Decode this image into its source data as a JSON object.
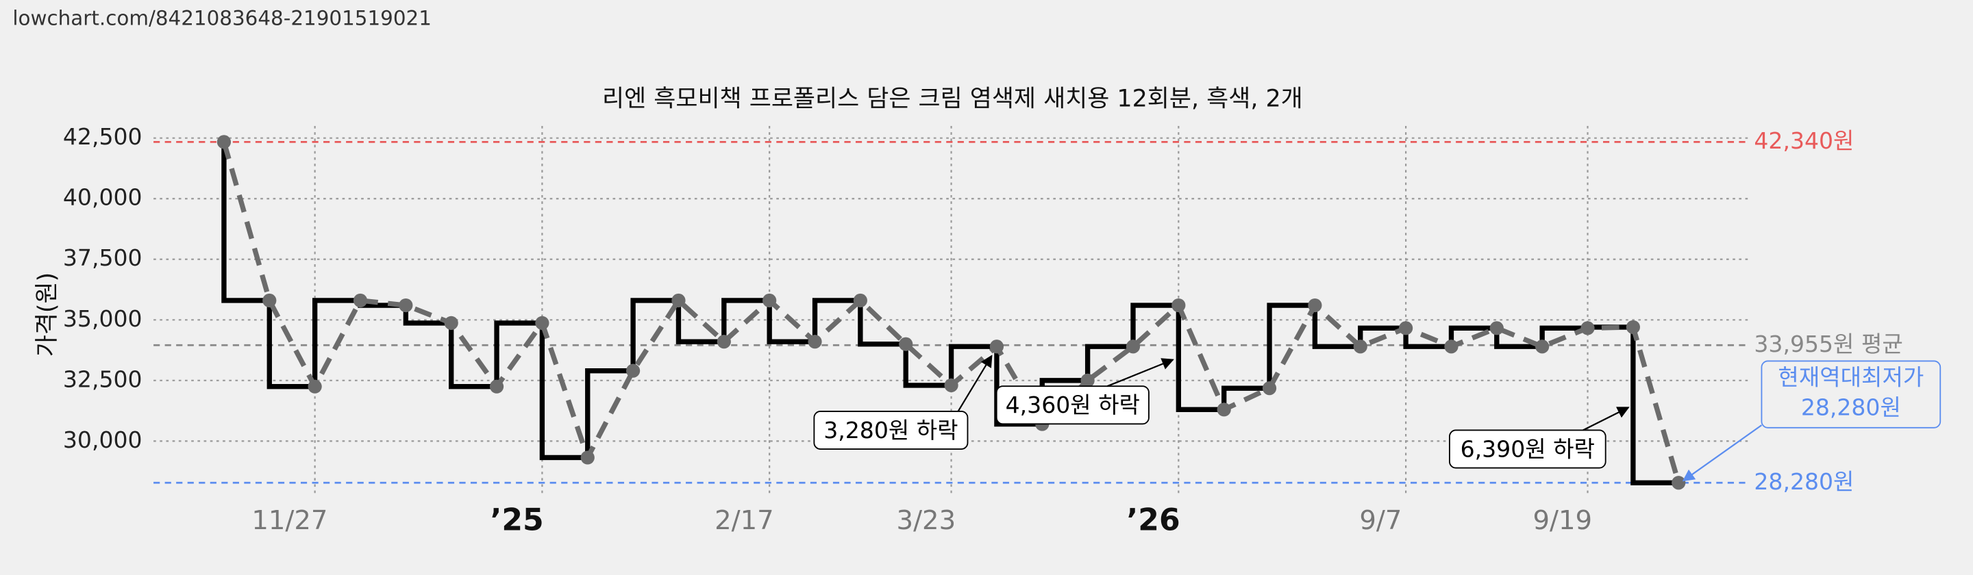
{
  "source": "lowchart.com/8421083648-21901519021",
  "chart_data": {
    "type": "line",
    "title": "리엔 흑모비책 프로폴리스 담은 크림 염색제 새치용 12회분, 흑색, 2개",
    "y_label": "가격(원)",
    "x": [
      0,
      1,
      2,
      3,
      4,
      5,
      6,
      7,
      8,
      9,
      10,
      11,
      12,
      13,
      14,
      15,
      16,
      17,
      18,
      19,
      20,
      21,
      22,
      23,
      24,
      25,
      26,
      27,
      28,
      29,
      30,
      31,
      32
    ],
    "values": [
      42340,
      35800,
      32250,
      35800,
      35600,
      34870,
      32250,
      34870,
      29320,
      32900,
      35800,
      34100,
      35800,
      34100,
      35800,
      34000,
      32300,
      33900,
      30700,
      32500,
      33900,
      35600,
      31300,
      32180,
      35600,
      33900,
      34660,
      33900,
      34660,
      33900,
      34660,
      34700,
      28280
    ],
    "line_color": "#6b6b6b",
    "step_color": "#000000",
    "xlim": [
      -1.55,
      33.55
    ],
    "xticks": [
      {
        "value": 2,
        "label": "11/27"
      },
      {
        "value": 7,
        "label": "’25",
        "major": true
      },
      {
        "value": 12,
        "label": "2/17"
      },
      {
        "value": 16,
        "label": "3/23"
      },
      {
        "value": 21,
        "label": "’26",
        "major": true
      },
      {
        "value": 26,
        "label": "9/7"
      },
      {
        "value": 30,
        "label": "9/19"
      }
    ],
    "ylim": [
      27700,
      43000
    ],
    "yticks": [
      {
        "value": 30000,
        "label": "30,000"
      },
      {
        "value": 32500,
        "label": "32,500"
      },
      {
        "value": 35000,
        "label": "35,000"
      },
      {
        "value": 37500,
        "label": "37,500"
      },
      {
        "value": 40000,
        "label": "40,000"
      },
      {
        "value": 42500,
        "label": "42,500"
      }
    ],
    "grid": true,
    "reference_lines": [
      {
        "value": 42340,
        "label": "42,340원",
        "color": "#e85a5a"
      },
      {
        "value": 33955,
        "label": "33,955원 평균",
        "color": "#888888"
      },
      {
        "value": 28280,
        "label": "28,280원",
        "color": "#5b8def"
      }
    ],
    "annotations": [
      {
        "text": "3,280원 하락"
      },
      {
        "text": "4,360원 하락"
      },
      {
        "text": "6,390원 하락"
      }
    ],
    "callout": {
      "lines": [
        "현재역대최저가",
        "28,280원"
      ],
      "color": "#5b8def"
    }
  }
}
